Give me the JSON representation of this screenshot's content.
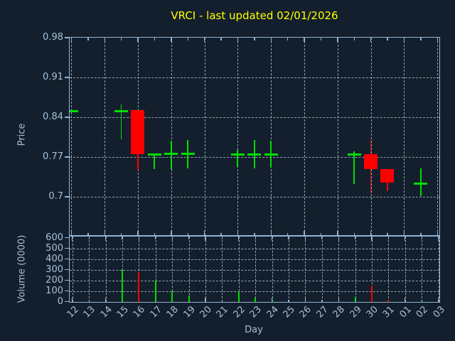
{
  "title": "VRCI - last updated 02/01/2026",
  "colors": {
    "background": "#131f2d",
    "frame": "#92b4d4",
    "tick_text": "#a6c0d8",
    "grid": "#aab8c6",
    "up": "#00dd00",
    "down": "#ff0000",
    "title": "#ffff00"
  },
  "price_axis": {
    "label": "Price"
  },
  "volume_axis": {
    "label": "Volume (0000)"
  },
  "x_axis": {
    "label": "Day"
  },
  "chart_data": {
    "type": "candlestick",
    "title": "VRCI - last updated 02/01/2026",
    "xlabel": "Day",
    "ylabel_price": "Price",
    "ylabel_volume": "Volume (0000)",
    "grid": true,
    "legend": null,
    "x_categories": [
      "12",
      "13",
      "14",
      "15",
      "16",
      "17",
      "18",
      "19",
      "20",
      "21",
      "22",
      "23",
      "24",
      "25",
      "26",
      "27",
      "28",
      "29",
      "30",
      "31",
      "01",
      "02",
      "03"
    ],
    "price_ylim": [
      0.63,
      0.98
    ],
    "price_ticks": [
      0.7,
      0.77,
      0.84,
      0.91,
      0.98
    ],
    "volume_ylim": [
      0,
      600
    ],
    "volume_ticks": [
      0,
      100,
      200,
      300,
      400,
      500,
      600
    ],
    "price_grid_every_n_days": 2,
    "volume_grid_every_n_days": 1,
    "candles": [
      {
        "day": "12",
        "open": 0.85,
        "high": 0.85,
        "low": 0.85,
        "close": 0.85,
        "volume": 0
      },
      {
        "day": "15",
        "open": 0.85,
        "high": 0.862,
        "low": 0.8,
        "close": 0.85,
        "volume": 300
      },
      {
        "day": "16",
        "open": 0.852,
        "high": 0.852,
        "low": 0.747,
        "close": 0.774,
        "volume": 280
      },
      {
        "day": "17",
        "open": 0.774,
        "high": 0.774,
        "low": 0.748,
        "close": 0.774,
        "volume": 200
      },
      {
        "day": "18",
        "open": 0.775,
        "high": 0.798,
        "low": 0.748,
        "close": 0.775,
        "volume": 100
      },
      {
        "day": "19",
        "open": 0.775,
        "high": 0.8,
        "low": 0.749,
        "close": 0.775,
        "volume": 55
      },
      {
        "day": "22",
        "open": 0.774,
        "high": 0.782,
        "low": 0.752,
        "close": 0.774,
        "volume": 100
      },
      {
        "day": "23",
        "open": 0.774,
        "high": 0.799,
        "low": 0.749,
        "close": 0.774,
        "volume": 35
      },
      {
        "day": "24",
        "open": 0.774,
        "high": 0.798,
        "low": 0.75,
        "close": 0.774,
        "volume": 10
      },
      {
        "day": "29",
        "open": 0.774,
        "high": 0.78,
        "low": 0.722,
        "close": 0.774,
        "volume": 45
      },
      {
        "day": "30",
        "open": 0.775,
        "high": 0.799,
        "low": 0.705,
        "close": 0.748,
        "volume": 150
      },
      {
        "day": "31",
        "open": 0.748,
        "high": 0.748,
        "low": 0.709,
        "close": 0.724,
        "volume": 15
      },
      {
        "day": "02",
        "open": 0.723,
        "high": 0.75,
        "low": 0.701,
        "close": 0.723,
        "volume": 12
      }
    ]
  }
}
